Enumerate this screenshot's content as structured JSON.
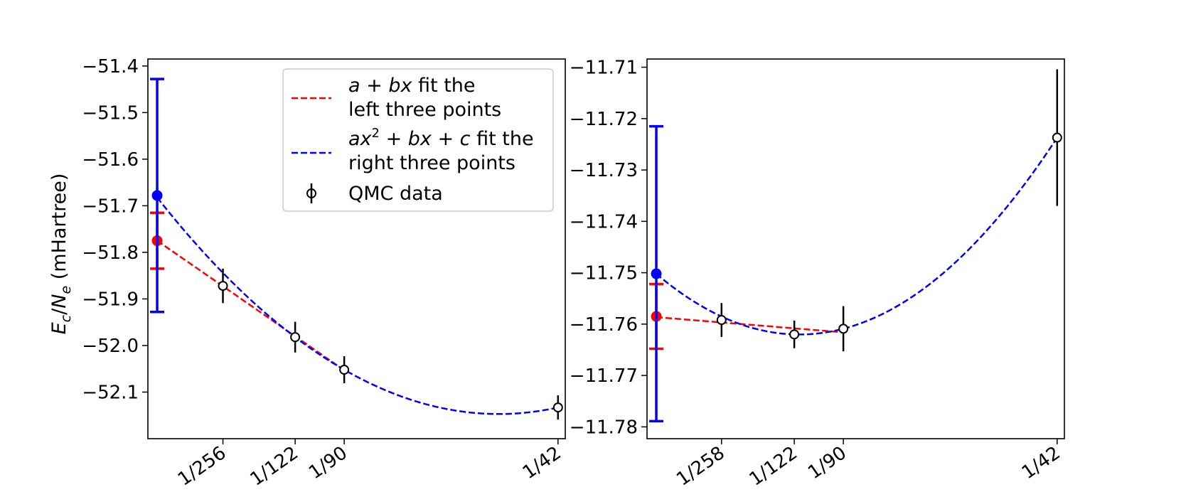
{
  "colors": {
    "fit_linear": "#ff0000",
    "fit_quadratic": "#0000ff",
    "qmc": "#000000",
    "frame": "#000000",
    "legend_border": "#cccccc"
  },
  "chart_data": [
    {
      "type": "scatter",
      "panel": "left",
      "title": "",
      "xlabel": "",
      "ylabel": "E_c/N_e (mHartree)",
      "ylabel_parts": {
        "e": "E",
        "c": "c",
        "slash": "/",
        "n": "N",
        "sub": "e",
        "unit": " (mHartree)"
      },
      "x_scale": "1/N_e",
      "xlim": [
        -0.00055,
        0.02424
      ],
      "ylim": [
        -52.2,
        -51.385
      ],
      "x_ticks": [
        {
          "value": 0.0039063,
          "label": "1/256"
        },
        {
          "value": 0.0081967,
          "label": "1/122"
        },
        {
          "value": 0.0111111,
          "label": "1/90"
        },
        {
          "value": 0.0238095,
          "label": "1/42"
        }
      ],
      "y_ticks": [
        -52.1,
        -52.0,
        -51.9,
        -51.8,
        -51.7,
        -51.6,
        -51.5,
        -51.4
      ],
      "y_tick_labels": [
        "−52.1",
        "−52.0",
        "−51.9",
        "−51.8",
        "−51.7",
        "−51.6",
        "−51.5",
        "−51.4"
      ],
      "grid": false,
      "qmc_data": [
        {
          "x": 0.0039063,
          "y": -51.872,
          "err": 0.037
        },
        {
          "x": 0.0081967,
          "y": -51.982,
          "err": 0.033
        },
        {
          "x": 0.0111111,
          "y": -52.052,
          "err": 0.029
        },
        {
          "x": 0.0238095,
          "y": -52.133,
          "err": 0.026
        }
      ],
      "extrapolations": [
        {
          "series": "linear",
          "x": 0.0,
          "y": -51.775,
          "err": 0.06
        },
        {
          "series": "quadratic",
          "x": 0.0,
          "y": -51.678,
          "err": 0.25
        }
      ],
      "series": [
        {
          "name": "linear",
          "fit": "linear",
          "x_range": [
            0.0,
            0.0111111
          ]
        },
        {
          "name": "quadratic",
          "fit": "quadratic",
          "x_range": [
            0.0,
            0.0238095
          ]
        }
      ],
      "legend": {
        "placement": "upper right",
        "entries": [
          {
            "series": "linear",
            "style": "dashed",
            "line1": {
              "math": "a + bx",
              "text": " fit the"
            },
            "line2": "left three points"
          },
          {
            "series": "quadratic",
            "style": "dashed",
            "line1": {
              "math_a": "ax",
              "sup": "2",
              "math_b": " + bx + c",
              "text": " fit the"
            },
            "line2": "right three points"
          },
          {
            "series": "qmc",
            "style": "errorbar",
            "label": "QMC data"
          }
        ]
      }
    },
    {
      "type": "scatter",
      "panel": "right",
      "title": "",
      "xlabel": "",
      "ylabel": "",
      "x_scale": "1/N_e",
      "xlim": [
        -0.00055,
        0.02424
      ],
      "ylim": [
        -11.7823,
        -11.7084
      ],
      "x_ticks": [
        {
          "value": 0.003876,
          "label": "1/258"
        },
        {
          "value": 0.0081967,
          "label": "1/122"
        },
        {
          "value": 0.0111111,
          "label": "1/90"
        },
        {
          "value": 0.0238095,
          "label": "1/42"
        }
      ],
      "y_ticks": [
        -11.78,
        -11.77,
        -11.76,
        -11.75,
        -11.74,
        -11.73,
        -11.72,
        -11.71
      ],
      "y_tick_labels": [
        "−11.78",
        "−11.77",
        "−11.76",
        "−11.75",
        "−11.74",
        "−11.73",
        "−11.72",
        "−11.71"
      ],
      "grid": false,
      "qmc_data": [
        {
          "x": 0.003876,
          "y": -11.7592,
          "err": 0.0033
        },
        {
          "x": 0.0081967,
          "y": -11.762,
          "err": 0.0027
        },
        {
          "x": 0.0111111,
          "y": -11.7609,
          "err": 0.0044
        },
        {
          "x": 0.0238095,
          "y": -11.7237,
          "err": 0.0133
        }
      ],
      "extrapolations": [
        {
          "series": "linear",
          "x": 0.0,
          "y": -11.7585,
          "err": 0.0063
        },
        {
          "series": "quadratic",
          "x": 0.0,
          "y": -11.7502,
          "err": 0.0287
        }
      ],
      "series": [
        {
          "name": "linear",
          "fit": "linear",
          "x_range": [
            0.0,
            0.0111111
          ]
        },
        {
          "name": "quadratic",
          "fit": "quadratic",
          "x_range": [
            0.0,
            0.0238095
          ]
        }
      ]
    }
  ]
}
